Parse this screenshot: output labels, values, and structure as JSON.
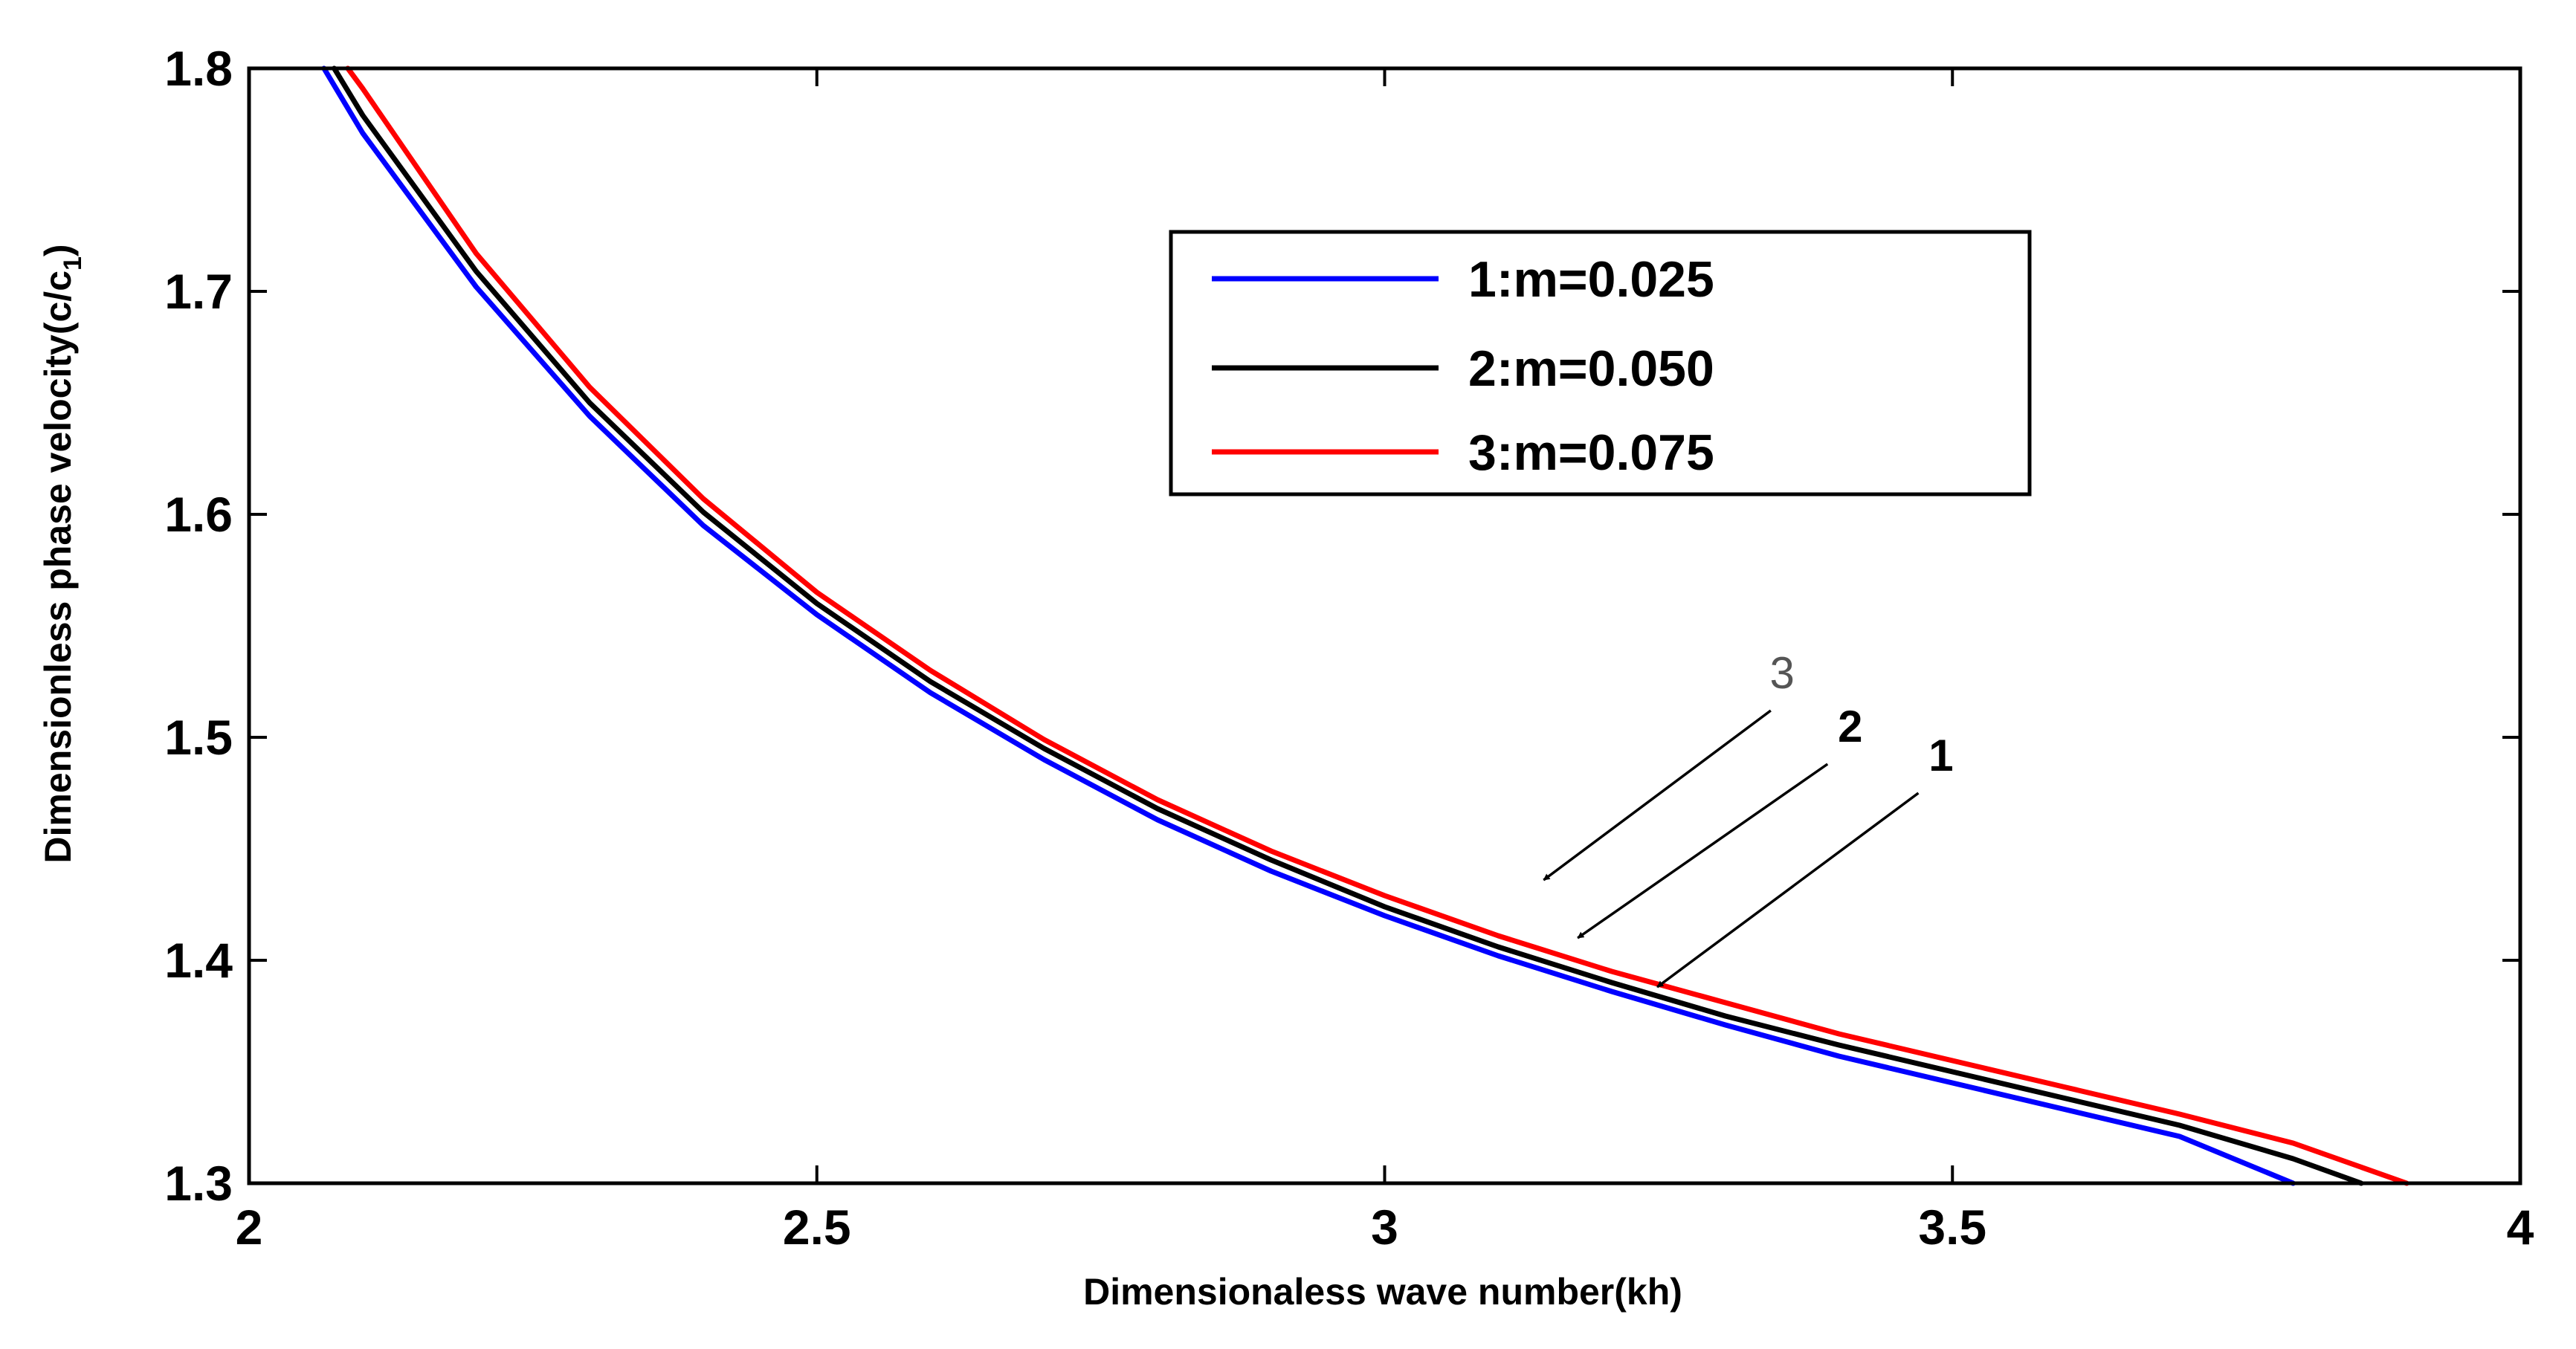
{
  "chart_data": {
    "type": "line",
    "title": "",
    "xlabel": "Dimensionaless wave number(kh)",
    "ylabel_main": "Dimensionless phase velocity(c/c",
    "ylabel_sub": "1",
    "ylabel_close": ")",
    "xlim": [
      2,
      4
    ],
    "ylim": [
      1.3,
      1.8
    ],
    "xticks": [
      2,
      2.5,
      3,
      3.5,
      4
    ],
    "xtick_labels": [
      "2",
      "2.5",
      "3",
      "3.5",
      "4"
    ],
    "yticks": [
      1.3,
      1.4,
      1.5,
      1.6,
      1.7,
      1.8
    ],
    "ytick_labels": [
      "1.3",
      "1.4",
      "1.5",
      "1.6",
      "1.7",
      "1.8"
    ],
    "grid": false,
    "legend_position": "upper-center-right",
    "series": [
      {
        "name": "1:m=0.025",
        "color": "#0000ff",
        "x": [
          2.066,
          2.1,
          2.2,
          2.3,
          2.4,
          2.5,
          2.6,
          2.7,
          2.8,
          2.9,
          3.0,
          3.1,
          3.2,
          3.3,
          3.4,
          3.5,
          3.6,
          3.7,
          3.8
        ],
        "y": [
          1.8,
          1.771,
          1.702,
          1.644,
          1.595,
          1.555,
          1.52,
          1.49,
          1.463,
          1.44,
          1.42,
          1.402,
          1.386,
          1.371,
          1.357,
          1.345,
          1.333,
          1.321,
          1.3
        ]
      },
      {
        "name": "2:m=0.050",
        "color": "#000000",
        "x": [
          2.075,
          2.1,
          2.2,
          2.3,
          2.4,
          2.5,
          2.6,
          2.7,
          2.8,
          2.9,
          3.0,
          3.1,
          3.2,
          3.3,
          3.4,
          3.5,
          3.6,
          3.7,
          3.8,
          3.86
        ],
        "y": [
          1.8,
          1.779,
          1.709,
          1.65,
          1.601,
          1.56,
          1.525,
          1.495,
          1.468,
          1.445,
          1.424,
          1.406,
          1.39,
          1.375,
          1.362,
          1.35,
          1.338,
          1.326,
          1.311,
          1.3
        ]
      },
      {
        "name": "3:m=0.075",
        "color": "#ff0000",
        "x": [
          2.087,
          2.1,
          2.2,
          2.3,
          2.4,
          2.5,
          2.6,
          2.7,
          2.8,
          2.9,
          3.0,
          3.1,
          3.2,
          3.3,
          3.4,
          3.5,
          3.6,
          3.7,
          3.8,
          3.9
        ],
        "y": [
          1.8,
          1.791,
          1.717,
          1.657,
          1.607,
          1.565,
          1.53,
          1.499,
          1.472,
          1.449,
          1.429,
          1.411,
          1.395,
          1.381,
          1.367,
          1.355,
          1.343,
          1.331,
          1.318,
          1.3
        ]
      }
    ],
    "annotations": [
      {
        "label": "3",
        "weight": "normal",
        "text_x": 3.35,
        "text_y": 1.522,
        "arrow_from": [
          3.34,
          1.512
        ],
        "arrow_to": [
          3.14,
          1.436
        ]
      },
      {
        "label": "2",
        "weight": "bold",
        "text_x": 3.41,
        "text_y": 1.498,
        "arrow_from": [
          3.39,
          1.488
        ],
        "arrow_to": [
          3.17,
          1.41
        ]
      },
      {
        "label": "1",
        "weight": "bold",
        "text_x": 3.49,
        "text_y": 1.485,
        "arrow_from": [
          3.47,
          1.475
        ],
        "arrow_to": [
          3.24,
          1.388
        ]
      }
    ]
  }
}
